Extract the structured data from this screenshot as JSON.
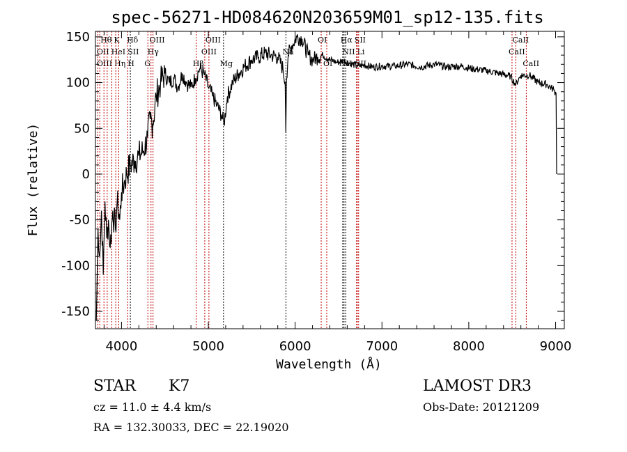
{
  "chart_data": {
    "type": "line",
    "title": "spec-56271-HD084620N203659M01_sp12-135.fits",
    "xlabel": "Wavelength (Å)",
    "ylabel": "Flux (relative)",
    "xlim": [
      3700,
      9100
    ],
    "ylim": [
      -169,
      156
    ],
    "xticks": [
      4000,
      5000,
      6000,
      7000,
      8000,
      9000
    ],
    "yticks": [
      -150,
      -100,
      -50,
      0,
      50,
      100,
      150
    ],
    "series": [
      {
        "name": "spectrum",
        "x": [
          3710,
          3730,
          3750,
          3770,
          3790,
          3810,
          3830,
          3850,
          3870,
          3900,
          3930,
          3950,
          3980,
          4000,
          4030,
          4060,
          4100,
          4150,
          4200,
          4250,
          4300,
          4330,
          4360,
          4400,
          4450,
          4500,
          4550,
          4600,
          4650,
          4700,
          4750,
          4800,
          4850,
          4900,
          4950,
          5000,
          5050,
          5100,
          5150,
          5180,
          5220,
          5280,
          5350,
          5420,
          5500,
          5580,
          5650,
          5720,
          5800,
          5860,
          5885,
          5893,
          5900,
          5920,
          5960,
          6020,
          6080,
          6150,
          6200,
          6260,
          6320,
          6400,
          6480,
          6560,
          6640,
          6720,
          6800,
          6900,
          7000,
          7150,
          7300,
          7450,
          7600,
          7750,
          7900,
          8050,
          8200,
          8350,
          8480,
          8540,
          8600,
          8700,
          8800,
          8900,
          8980,
          9005,
          9012
        ],
        "y": [
          -160,
          -60,
          -90,
          -40,
          -110,
          -30,
          -70,
          -50,
          -80,
          -40,
          -60,
          -30,
          -50,
          -20,
          -10,
          0,
          10,
          15,
          20,
          25,
          40,
          60,
          55,
          85,
          100,
          110,
          100,
          105,
          95,
          110,
          100,
          95,
          105,
          115,
          110,
          95,
          85,
          75,
          65,
          55,
          85,
          100,
          110,
          118,
          125,
          128,
          132,
          130,
          128,
          115,
          100,
          45,
          105,
          130,
          140,
          150,
          148,
          130,
          125,
          128,
          130,
          125,
          122,
          124,
          121,
          118,
          119,
          117,
          118,
          118,
          120,
          117,
          120,
          117,
          118,
          115,
          113,
          110,
          107,
          98,
          108,
          108,
          100,
          98,
          92,
          88,
          0
        ]
      }
    ],
    "line_markers": [
      {
        "wavelength": 3727,
        "label": "OII",
        "row": 2,
        "color": "red"
      },
      {
        "wavelength": 3750,
        "label": "OIII",
        "row": 3,
        "color": "red"
      },
      {
        "wavelength": 3798,
        "label": "Hθ",
        "row": 1,
        "color": "red"
      },
      {
        "wavelength": 3835,
        "label": "Hη",
        "row": 3,
        "color": "red"
      },
      {
        "wavelength": 3889,
        "label": "HeI",
        "row": 2,
        "color": "red"
      },
      {
        "wavelength": 3934,
        "label": "K",
        "row": 1,
        "color": "red"
      },
      {
        "wavelength": 3968,
        "label": "H",
        "row": 3,
        "color": "red"
      },
      {
        "wavelength": 4072,
        "label": "SII",
        "row": 2,
        "color": "red"
      },
      {
        "wavelength": 4102,
        "label": "Hδ",
        "row": 1,
        "color": "black"
      },
      {
        "wavelength": 4304,
        "label": "G",
        "row": 3,
        "color": "red"
      },
      {
        "wavelength": 4340,
        "label": "Hγ",
        "row": 2,
        "color": "red"
      },
      {
        "wavelength": 4363,
        "label": "OIII",
        "row": 1,
        "color": "red"
      },
      {
        "wavelength": 4861,
        "label": "Hβ",
        "row": 3,
        "color": "red"
      },
      {
        "wavelength": 4959,
        "label": "OIII",
        "row": 2,
        "color": "red"
      },
      {
        "wavelength": 5007,
        "label": "OIII",
        "row": 1,
        "color": "red"
      },
      {
        "wavelength": 5175,
        "label": "Mg",
        "row": 3,
        "color": "black"
      },
      {
        "wavelength": 5894,
        "label": "Na",
        "row": 2,
        "color": "black"
      },
      {
        "wavelength": 6300,
        "label": "OI",
        "row": 1,
        "color": "red"
      },
      {
        "wavelength": 6364,
        "label": "OI",
        "row": 3,
        "color": "red"
      },
      {
        "wavelength": 6548,
        "label": "NII",
        "row": 3,
        "color": "black"
      },
      {
        "wavelength": 6563,
        "label": "Hα",
        "row": 1,
        "color": "black"
      },
      {
        "wavelength": 6583,
        "label": "NII",
        "row": 2,
        "color": "black"
      },
      {
        "wavelength": 6707,
        "label": "Li",
        "row": 2,
        "color": "red"
      },
      {
        "wavelength": 6716,
        "label": "SII",
        "row": 1,
        "color": "red"
      },
      {
        "wavelength": 6731,
        "label": "SII",
        "row": 3,
        "color": "red"
      },
      {
        "wavelength": 8498,
        "label": "CaII",
        "row": 2,
        "color": "red"
      },
      {
        "wavelength": 8542,
        "label": "CaII",
        "row": 1,
        "color": "red"
      },
      {
        "wavelength": 8662,
        "label": "CaII",
        "row": 3,
        "color": "red"
      }
    ],
    "grid": false
  },
  "info": {
    "class": "STAR",
    "subclass": "K7",
    "survey": "LAMOST DR3",
    "redshift": "cz = 11.0 ± 4.4 km/s",
    "obs_date": "Obs-Date: 20121209",
    "coords": "RA = 132.30033, DEC =  22.19020"
  },
  "colors": {
    "marker_red": "#c00000",
    "spectrum": "#000000"
  }
}
